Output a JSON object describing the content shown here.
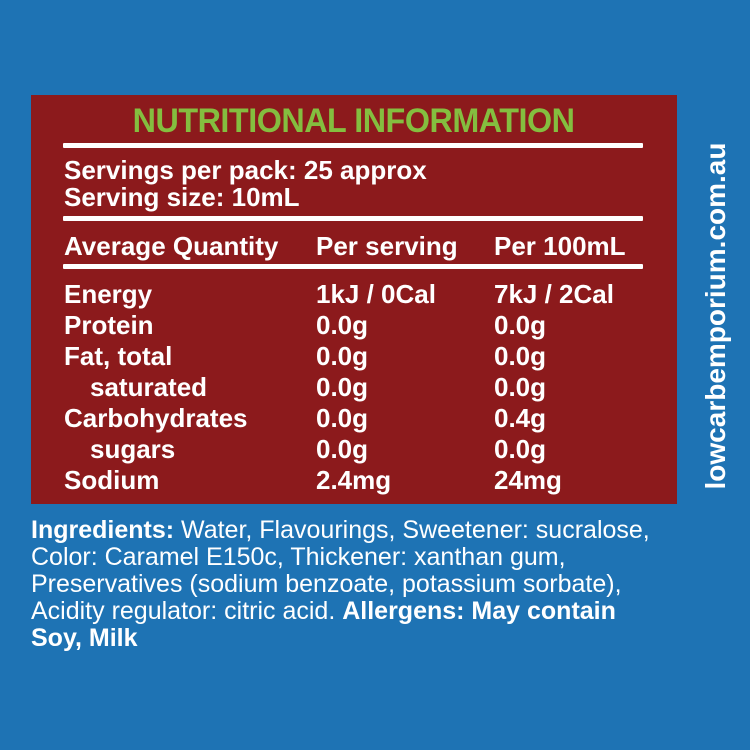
{
  "colors": {
    "background_blue": "#1E73B4",
    "panel_red": "#8C1A1C",
    "title_green": "#84BE3F",
    "text_white": "#FFFFFF"
  },
  "panel": {
    "title": "NUTRITIONAL INFORMATION",
    "servings_per_pack": "Servings per pack: 25 approx",
    "serving_size": "Serving size: 10mL",
    "table": {
      "headers": [
        "Average Quantity",
        "Per serving",
        "Per 100mL"
      ],
      "rows": [
        {
          "label": "Energy",
          "indent": false,
          "per_serving": "1kJ / 0Cal",
          "per_100ml": "7kJ / 2Cal"
        },
        {
          "label": "Protein",
          "indent": false,
          "per_serving": "0.0g",
          "per_100ml": "0.0g"
        },
        {
          "label": "Fat, total",
          "indent": false,
          "per_serving": "0.0g",
          "per_100ml": "0.0g"
        },
        {
          "label": "saturated",
          "indent": true,
          "per_serving": "0.0g",
          "per_100ml": "0.0g"
        },
        {
          "label": "Carbohydrates",
          "indent": false,
          "per_serving": "0.0g",
          "per_100ml": "0.4g"
        },
        {
          "label": "sugars",
          "indent": true,
          "per_serving": "0.0g",
          "per_100ml": "0.0g"
        },
        {
          "label": "Sodium",
          "indent": false,
          "per_serving": "2.4mg",
          "per_100ml": "24mg"
        }
      ]
    }
  },
  "ingredients": {
    "segments": [
      {
        "text": "Ingredients:",
        "bold": true
      },
      {
        "text": " Water, Flavourings, Sweetener: sucralose,\nColor: Caramel E150c, Thickener: xanthan gum,\nPreservatives (sodium benzoate, potassium sorbate),\nAcidity regulator: citric acid. ",
        "bold": false
      },
      {
        "text": "Allergens: May contain\nSoy, Milk",
        "bold": true
      }
    ]
  },
  "website": "lowcarbemporium.com.au"
}
